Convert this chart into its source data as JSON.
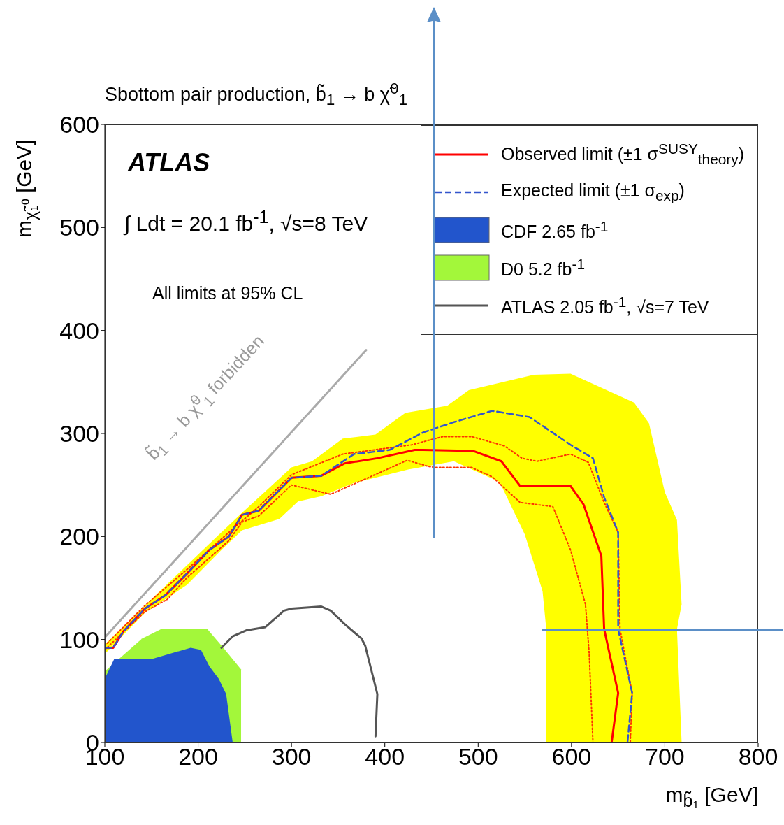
{
  "chart_data": {
    "type": "line",
    "title": "Sbottom pair production, b̃$_{1}$ → b χ̃$^{0}$$_{1}$",
    "xlabel": "m$_{b̃₁}$ [GeV]",
    "ylabel": "m$_{χ̃₁⁰}$ [GeV]",
    "xlim": [
      100,
      800
    ],
    "xticks": [
      100,
      200,
      300,
      400,
      500,
      600,
      700,
      800
    ],
    "ylim": [
      0,
      600
    ],
    "yticks": [
      0,
      100,
      200,
      300,
      400,
      500,
      600
    ],
    "legend": "top right",
    "annotations": [
      "ATLAS",
      "∫ Ldt = 20.1 fb$^{-1}$,  √s=8 TeV",
      "All limits at 95% CL",
      "b̃$_{1}$ → b χ̃$^{0}$$_{1}$ forbidden"
    ],
    "series": [
      {
        "name": "Observed limit (±1 σ$^{SUSY}$$_{theory}$)",
        "type": "line",
        "color": "#ff0000",
        "x": [
          100,
          109,
          120,
          143,
          165,
          188,
          212,
          233,
          247,
          265,
          300,
          332,
          357,
          392,
          432,
          441,
          495,
          525,
          545,
          599,
          613,
          632,
          635,
          650,
          643
        ],
        "values": [
          92,
          92,
          108,
          130,
          143,
          164,
          187,
          200,
          221,
          225,
          257,
          259,
          271,
          276,
          284,
          284,
          283,
          273,
          249,
          249,
          231,
          181,
          110,
          48,
          0
        ]
      },
      {
        "name": "Expected limit (±1 σ$_{exp}$)",
        "type": "line",
        "line_style": "dashed",
        "color": "#3355cc",
        "x": [
          100,
          109,
          120,
          143,
          165,
          188,
          212,
          233,
          247,
          265,
          300,
          332,
          367,
          405,
          441,
          474,
          515,
          555,
          599,
          623,
          635,
          650,
          650,
          665,
          660
        ],
        "values": [
          92,
          92,
          108,
          130,
          143,
          164,
          187,
          200,
          221,
          225,
          257,
          259,
          280,
          284,
          301,
          311,
          322,
          316,
          289,
          276,
          238,
          204,
          110,
          48,
          0
        ]
      },
      {
        "name": "CDF 2.65 fb$^{-1}$",
        "type": "area",
        "color": "#2255cc",
        "x": [
          100,
          100,
          110,
          150,
          192,
          203,
          212,
          222,
          230,
          237
        ],
        "values": [
          0,
          62,
          81,
          81,
          92,
          90,
          74,
          62,
          47,
          0
        ]
      },
      {
        "name": "D0 5.2 fb$^{-1}$",
        "type": "area",
        "color": "#a3f73a",
        "x": [
          100,
          100,
          140,
          160,
          210,
          227,
          246,
          246
        ],
        "values": [
          0,
          69,
          101,
          110,
          110,
          92,
          71,
          0
        ]
      },
      {
        "name": "ATLAS 2.05 fb$^{-1}$, √s=7 TeV",
        "type": "line",
        "color": "#555555",
        "x": [
          225,
          237,
          252,
          272,
          292,
          300,
          332,
          342,
          357,
          375,
          379,
          392,
          390
        ],
        "values": [
          92,
          103,
          109,
          112,
          128,
          130,
          132,
          128,
          115,
          101,
          94,
          47,
          6
        ]
      },
      {
        "type": "line",
        "line_style": "dotted",
        "color": "#ff3300",
        "x": [
          100,
          143,
          188,
          233,
          265,
          300,
          355,
          429,
          462,
          493,
          528,
          547,
          563,
          599,
          618,
          635,
          650,
          652,
          665,
          663
        ],
        "values": [
          94,
          133,
          168,
          204,
          229,
          260,
          280,
          289,
          297,
          297,
          288,
          276,
          273,
          280,
          272,
          233,
          204,
          110,
          48,
          0
        ]
      },
      {
        "type": "line",
        "line_style": "dotted",
        "color": "#ff3300",
        "x": [
          100,
          143,
          167,
          188,
          233,
          247,
          265,
          300,
          342,
          392,
          424,
          447,
          455,
          493,
          515,
          545,
          580,
          599,
          615,
          619,
          623
        ],
        "values": [
          90,
          127,
          139,
          160,
          196,
          214,
          220,
          250,
          241,
          261,
          274,
          268,
          267,
          267,
          258,
          233,
          229,
          187,
          134,
          86,
          0
        ]
      },
      {
        "type": "line",
        "color": "#aaaaaa",
        "x": [
          100,
          380
        ],
        "values": [
          102,
          381
        ]
      },
      {
        "type": "area",
        "color": "#ffff00",
        "x": [
          100,
          143,
          212,
          247,
          300,
          322,
          355,
          390,
          422,
          467,
          490,
          560,
          599,
          667,
          683,
          700,
          713,
          718,
          713,
          718,
          573,
          573,
          569,
          550,
          523,
          474,
          425,
          367,
          332,
          307,
          287,
          247,
          225,
          188,
          143,
          100
        ],
        "values": [
          95,
          133,
          193,
          223,
          267,
          273,
          295,
          299,
          320,
          327,
          342,
          357,
          358,
          330,
          310,
          243,
          216,
          134,
          110,
          0,
          0,
          110,
          147,
          202,
          253,
          273,
          265,
          252,
          239,
          234,
          217,
          206,
          187,
          153,
          126,
          86
        ]
      }
    ]
  }
}
